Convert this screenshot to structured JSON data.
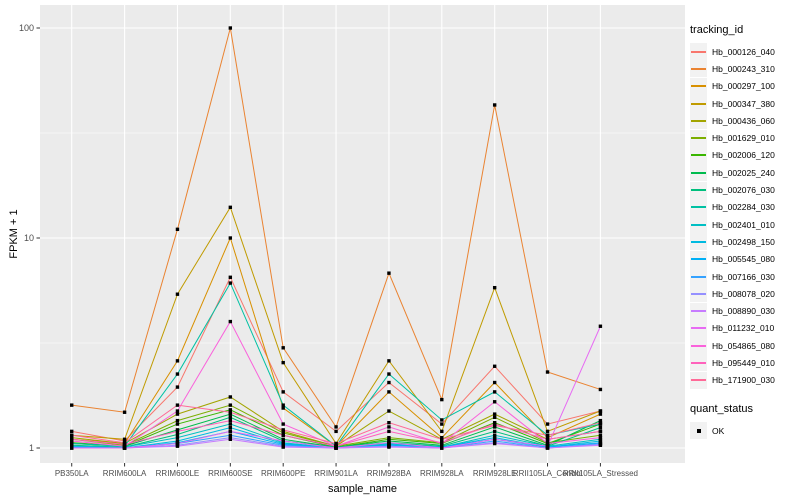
{
  "figure": {
    "background": "#FFFFFF",
    "panel_background": "#EBEBEB",
    "grid_color": "#FFFFFF",
    "tick_color": "#333333",
    "tick_label_color": "#4D4D4D",
    "axis_title_color": "#000000"
  },
  "chart_data": {
    "type": "line",
    "title": "",
    "xlabel": "sample_name",
    "ylabel": "FPKM + 1",
    "y_scale": "log10",
    "y_ticks": [
      1,
      10,
      100
    ],
    "y_minor_ticks": [
      3.1623,
      31.623
    ],
    "ylim": [
      0.85,
      127
    ],
    "grid": true,
    "legend_position": "right",
    "point_shape": "square",
    "point_color": "#000000",
    "categories": [
      "PB350LA",
      "RRIM600LA",
      "RRIM600LE",
      "RRIM600SE",
      "RRIM600PE",
      "RRIM901LA",
      "RRIM928BA",
      "RRIM928LA",
      "RRIM928LE",
      "RRII105LA_Control",
      "RRII105LA_Stressed"
    ],
    "series": [
      {
        "name": "Hb_000126_040",
        "color": "#F8766D",
        "values": [
          1.2,
          1.08,
          1.95,
          6.5,
          1.85,
          1.2,
          2.05,
          1.3,
          2.45,
          1.3,
          1.5
        ]
      },
      {
        "name": "Hb_000243_310",
        "color": "#EA8331",
        "values": [
          1.6,
          1.48,
          11.0,
          100.0,
          3.0,
          1.26,
          6.8,
          1.7,
          43.0,
          2.3,
          1.9
        ]
      },
      {
        "name": "Hb_000297_100",
        "color": "#D89000",
        "values": [
          1.1,
          1.05,
          2.6,
          10.0,
          1.55,
          1.02,
          1.85,
          1.12,
          2.05,
          1.12,
          1.45
        ]
      },
      {
        "name": "Hb_000347_380",
        "color": "#C09B00",
        "values": [
          1.15,
          1.1,
          5.4,
          14.0,
          2.55,
          1.05,
          2.6,
          1.2,
          5.8,
          1.2,
          1.5
        ]
      },
      {
        "name": "Hb_000436_060",
        "color": "#A3A500",
        "values": [
          1.12,
          1.05,
          1.45,
          1.75,
          1.2,
          1.02,
          1.5,
          1.1,
          1.45,
          1.1,
          1.2
        ]
      },
      {
        "name": "Hb_001629_010",
        "color": "#7CAE00",
        "values": [
          1.1,
          1.03,
          1.35,
          1.6,
          1.18,
          1.02,
          1.12,
          1.06,
          1.4,
          1.06,
          1.15
        ]
      },
      {
        "name": "Hb_002006_120",
        "color": "#39B600",
        "values": [
          1.06,
          1.02,
          1.3,
          1.52,
          1.15,
          1.01,
          1.1,
          1.05,
          1.32,
          1.05,
          1.3
        ]
      },
      {
        "name": "Hb_002025_240",
        "color": "#00BB4E",
        "values": [
          1.05,
          1.02,
          1.22,
          1.45,
          1.1,
          1.01,
          1.08,
          1.03,
          1.26,
          1.03,
          1.35
        ]
      },
      {
        "name": "Hb_002076_030",
        "color": "#00BF7D",
        "values": [
          1.03,
          1.01,
          1.16,
          1.4,
          1.08,
          1.01,
          1.06,
          1.02,
          1.2,
          1.02,
          1.25
        ]
      },
      {
        "name": "Hb_002284_030",
        "color": "#00C1A3",
        "values": [
          1.05,
          1.02,
          2.25,
          6.1,
          1.6,
          1.02,
          2.25,
          1.36,
          1.85,
          1.15,
          1.3
        ]
      },
      {
        "name": "Hb_002401_010",
        "color": "#00BFC4",
        "values": [
          1.02,
          1.01,
          1.12,
          1.3,
          1.06,
          1.0,
          1.05,
          1.01,
          1.15,
          1.02,
          1.1
        ]
      },
      {
        "name": "Hb_002498_150",
        "color": "#00BAE0",
        "values": [
          1.02,
          1.0,
          1.08,
          1.25,
          1.05,
          1.0,
          1.04,
          1.01,
          1.12,
          1.01,
          1.08
        ]
      },
      {
        "name": "Hb_005545_080",
        "color": "#00B0F6",
        "values": [
          1.01,
          1.0,
          1.06,
          1.2,
          1.04,
          1.0,
          1.03,
          1.01,
          1.1,
          1.01,
          1.06
        ]
      },
      {
        "name": "Hb_007166_030",
        "color": "#35A2FF",
        "values": [
          1.01,
          1.0,
          1.05,
          1.15,
          1.03,
          1.0,
          1.02,
          1.0,
          1.08,
          1.0,
          1.05
        ]
      },
      {
        "name": "Hb_008078_020",
        "color": "#9590FF",
        "values": [
          1.0,
          1.0,
          1.03,
          1.12,
          1.02,
          1.0,
          1.02,
          1.0,
          1.06,
          1.0,
          1.04
        ]
      },
      {
        "name": "Hb_008890_030",
        "color": "#C77CFF",
        "values": [
          1.0,
          1.0,
          1.02,
          1.1,
          1.01,
          1.0,
          1.01,
          1.0,
          1.05,
          1.0,
          1.03
        ]
      },
      {
        "name": "Hb_011232_010",
        "color": "#E76BF3",
        "values": [
          1.0,
          1.0,
          1.05,
          1.2,
          1.08,
          1.0,
          1.06,
          1.0,
          1.1,
          1.02,
          3.8
        ]
      },
      {
        "name": "Hb_054865_080",
        "color": "#FA62DB",
        "values": [
          1.08,
          1.02,
          1.5,
          4.0,
          1.3,
          1.02,
          1.26,
          1.05,
          1.66,
          1.05,
          1.12
        ]
      },
      {
        "name": "Hb_095449_010",
        "color": "#FF62BC",
        "values": [
          1.1,
          1.04,
          1.2,
          1.35,
          1.15,
          1.02,
          1.2,
          1.06,
          1.3,
          1.1,
          1.2
        ]
      },
      {
        "name": "Hb_171900_030",
        "color": "#FF6A98",
        "values": [
          1.15,
          1.06,
          1.6,
          1.48,
          1.22,
          1.05,
          1.32,
          1.1,
          1.28,
          1.15,
          1.32
        ]
      }
    ],
    "legend": {
      "color_title": "tracking_id",
      "shape_title": "quant_status",
      "shape_items": [
        {
          "label": "OK"
        }
      ]
    }
  }
}
